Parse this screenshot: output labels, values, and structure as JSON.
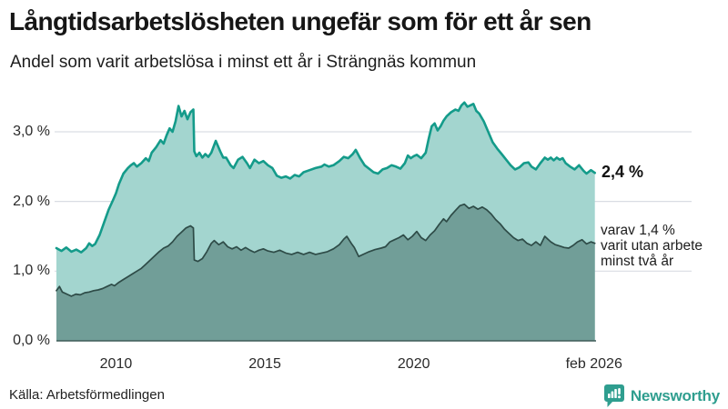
{
  "header": {
    "title": "Långtidsarbetslösheten ungefär som för ett år sen",
    "subtitle": "Andel som varit arbetslösa i minst ett år i Strängnäs kommun"
  },
  "chart_data": {
    "type": "area",
    "title": "Andel som varit arbetslösa i minst ett år i Strängnäs kommun",
    "grid": true,
    "x_axis": {
      "range": [
        2008.0,
        2026.12
      ],
      "ticks": [
        {
          "label": "2010",
          "year": 2010
        },
        {
          "label": "2015",
          "year": 2015
        },
        {
          "label": "2020",
          "year": 2020
        },
        {
          "label": "feb 2026",
          "year": 2026.05
        }
      ]
    },
    "y_axis": {
      "unit": "%",
      "range": [
        0,
        3.5
      ],
      "ticks": [
        {
          "label": "0,0 %",
          "value": 0
        },
        {
          "label": "1,0 %",
          "value": 1
        },
        {
          "label": "2,0 %",
          "value": 2
        },
        {
          "label": "3,0 %",
          "value": 3
        }
      ]
    },
    "series": [
      {
        "name": "Arbetslösa minst ett år",
        "end_label": "2,4 %",
        "end_value": 2.4,
        "line_color": "#149b8a",
        "fill_color": "#a3d5cf",
        "points": [
          [
            2008.0,
            1.33
          ],
          [
            2008.17,
            1.29
          ],
          [
            2008.33,
            1.34
          ],
          [
            2008.5,
            1.28
          ],
          [
            2008.67,
            1.31
          ],
          [
            2008.83,
            1.27
          ],
          [
            2009.0,
            1.33
          ],
          [
            2009.1,
            1.4
          ],
          [
            2009.2,
            1.36
          ],
          [
            2009.3,
            1.39
          ],
          [
            2009.45,
            1.52
          ],
          [
            2009.6,
            1.7
          ],
          [
            2009.75,
            1.88
          ],
          [
            2009.9,
            2.02
          ],
          [
            2010.0,
            2.12
          ],
          [
            2010.1,
            2.25
          ],
          [
            2010.25,
            2.4
          ],
          [
            2010.4,
            2.48
          ],
          [
            2010.5,
            2.52
          ],
          [
            2010.6,
            2.55
          ],
          [
            2010.7,
            2.5
          ],
          [
            2010.85,
            2.55
          ],
          [
            2011.0,
            2.62
          ],
          [
            2011.1,
            2.58
          ],
          [
            2011.2,
            2.7
          ],
          [
            2011.35,
            2.78
          ],
          [
            2011.5,
            2.88
          ],
          [
            2011.6,
            2.83
          ],
          [
            2011.7,
            2.95
          ],
          [
            2011.8,
            3.05
          ],
          [
            2011.9,
            3.0
          ],
          [
            2012.0,
            3.15
          ],
          [
            2012.1,
            3.37
          ],
          [
            2012.2,
            3.22
          ],
          [
            2012.3,
            3.3
          ],
          [
            2012.4,
            3.18
          ],
          [
            2012.5,
            3.28
          ],
          [
            2012.6,
            3.32
          ],
          [
            2012.63,
            2.72
          ],
          [
            2012.7,
            2.65
          ],
          [
            2012.8,
            2.7
          ],
          [
            2012.9,
            2.63
          ],
          [
            2013.0,
            2.68
          ],
          [
            2013.1,
            2.64
          ],
          [
            2013.2,
            2.7
          ],
          [
            2013.35,
            2.87
          ],
          [
            2013.5,
            2.72
          ],
          [
            2013.6,
            2.63
          ],
          [
            2013.7,
            2.63
          ],
          [
            2013.85,
            2.52
          ],
          [
            2013.95,
            2.48
          ],
          [
            2014.1,
            2.6
          ],
          [
            2014.25,
            2.64
          ],
          [
            2014.4,
            2.55
          ],
          [
            2014.5,
            2.48
          ],
          [
            2014.65,
            2.6
          ],
          [
            2014.8,
            2.55
          ],
          [
            2014.95,
            2.58
          ],
          [
            2015.1,
            2.52
          ],
          [
            2015.25,
            2.48
          ],
          [
            2015.4,
            2.37
          ],
          [
            2015.55,
            2.34
          ],
          [
            2015.7,
            2.36
          ],
          [
            2015.85,
            2.33
          ],
          [
            2016.0,
            2.38
          ],
          [
            2016.15,
            2.36
          ],
          [
            2016.3,
            2.42
          ],
          [
            2016.5,
            2.45
          ],
          [
            2016.7,
            2.48
          ],
          [
            2016.9,
            2.5
          ],
          [
            2017.0,
            2.53
          ],
          [
            2017.15,
            2.5
          ],
          [
            2017.3,
            2.52
          ],
          [
            2017.5,
            2.58
          ],
          [
            2017.65,
            2.64
          ],
          [
            2017.8,
            2.62
          ],
          [
            2017.95,
            2.68
          ],
          [
            2018.05,
            2.74
          ],
          [
            2018.2,
            2.62
          ],
          [
            2018.35,
            2.52
          ],
          [
            2018.5,
            2.47
          ],
          [
            2018.65,
            2.42
          ],
          [
            2018.8,
            2.4
          ],
          [
            2018.95,
            2.46
          ],
          [
            2019.1,
            2.48
          ],
          [
            2019.25,
            2.52
          ],
          [
            2019.4,
            2.5
          ],
          [
            2019.55,
            2.47
          ],
          [
            2019.7,
            2.55
          ],
          [
            2019.8,
            2.66
          ],
          [
            2019.9,
            2.62
          ],
          [
            2020.0,
            2.65
          ],
          [
            2020.1,
            2.67
          ],
          [
            2020.25,
            2.62
          ],
          [
            2020.4,
            2.7
          ],
          [
            2020.5,
            2.9
          ],
          [
            2020.6,
            3.08
          ],
          [
            2020.7,
            3.12
          ],
          [
            2020.8,
            3.02
          ],
          [
            2020.9,
            3.08
          ],
          [
            2021.0,
            3.16
          ],
          [
            2021.1,
            3.22
          ],
          [
            2021.25,
            3.28
          ],
          [
            2021.4,
            3.32
          ],
          [
            2021.5,
            3.3
          ],
          [
            2021.6,
            3.38
          ],
          [
            2021.7,
            3.42
          ],
          [
            2021.8,
            3.36
          ],
          [
            2021.9,
            3.38
          ],
          [
            2022.0,
            3.4
          ],
          [
            2022.1,
            3.3
          ],
          [
            2022.2,
            3.26
          ],
          [
            2022.35,
            3.15
          ],
          [
            2022.5,
            3.0
          ],
          [
            2022.65,
            2.85
          ],
          [
            2022.8,
            2.76
          ],
          [
            2022.95,
            2.68
          ],
          [
            2023.1,
            2.6
          ],
          [
            2023.25,
            2.52
          ],
          [
            2023.4,
            2.46
          ],
          [
            2023.55,
            2.49
          ],
          [
            2023.7,
            2.55
          ],
          [
            2023.85,
            2.56
          ],
          [
            2023.95,
            2.5
          ],
          [
            2024.1,
            2.46
          ],
          [
            2024.25,
            2.55
          ],
          [
            2024.4,
            2.63
          ],
          [
            2024.5,
            2.6
          ],
          [
            2024.6,
            2.63
          ],
          [
            2024.7,
            2.59
          ],
          [
            2024.8,
            2.63
          ],
          [
            2024.9,
            2.6
          ],
          [
            2025.0,
            2.62
          ],
          [
            2025.1,
            2.55
          ],
          [
            2025.25,
            2.5
          ],
          [
            2025.4,
            2.46
          ],
          [
            2025.55,
            2.52
          ],
          [
            2025.7,
            2.44
          ],
          [
            2025.8,
            2.4
          ],
          [
            2025.95,
            2.45
          ],
          [
            2026.08,
            2.41
          ]
        ]
      },
      {
        "name": "Varav utan arbete minst två år",
        "end_value": 1.4,
        "annotation_lines": [
          "varav 1,4 %",
          "varit utan arbete",
          "minst två år"
        ],
        "line_color": "#2e4b47",
        "fill_color": "#719e98",
        "points": [
          [
            2008.0,
            0.72
          ],
          [
            2008.1,
            0.78
          ],
          [
            2008.2,
            0.7
          ],
          [
            2008.35,
            0.67
          ],
          [
            2008.5,
            0.64
          ],
          [
            2008.65,
            0.67
          ],
          [
            2008.8,
            0.66
          ],
          [
            2008.95,
            0.69
          ],
          [
            2009.1,
            0.7
          ],
          [
            2009.25,
            0.72
          ],
          [
            2009.4,
            0.73
          ],
          [
            2009.55,
            0.75
          ],
          [
            2009.7,
            0.78
          ],
          [
            2009.85,
            0.81
          ],
          [
            2009.95,
            0.79
          ],
          [
            2010.1,
            0.84
          ],
          [
            2010.25,
            0.88
          ],
          [
            2010.4,
            0.92
          ],
          [
            2010.55,
            0.96
          ],
          [
            2010.7,
            1.0
          ],
          [
            2010.85,
            1.04
          ],
          [
            2011.0,
            1.1
          ],
          [
            2011.15,
            1.16
          ],
          [
            2011.3,
            1.22
          ],
          [
            2011.45,
            1.28
          ],
          [
            2011.6,
            1.33
          ],
          [
            2011.75,
            1.36
          ],
          [
            2011.9,
            1.42
          ],
          [
            2012.05,
            1.5
          ],
          [
            2012.2,
            1.56
          ],
          [
            2012.35,
            1.62
          ],
          [
            2012.5,
            1.65
          ],
          [
            2012.6,
            1.62
          ],
          [
            2012.63,
            1.16
          ],
          [
            2012.75,
            1.14
          ],
          [
            2012.9,
            1.18
          ],
          [
            2013.05,
            1.28
          ],
          [
            2013.2,
            1.4
          ],
          [
            2013.3,
            1.44
          ],
          [
            2013.45,
            1.38
          ],
          [
            2013.6,
            1.42
          ],
          [
            2013.75,
            1.35
          ],
          [
            2013.9,
            1.32
          ],
          [
            2014.05,
            1.35
          ],
          [
            2014.2,
            1.3
          ],
          [
            2014.35,
            1.34
          ],
          [
            2014.5,
            1.3
          ],
          [
            2014.65,
            1.27
          ],
          [
            2014.8,
            1.3
          ],
          [
            2014.95,
            1.32
          ],
          [
            2015.1,
            1.29
          ],
          [
            2015.3,
            1.27
          ],
          [
            2015.5,
            1.3
          ],
          [
            2015.7,
            1.26
          ],
          [
            2015.9,
            1.24
          ],
          [
            2016.1,
            1.27
          ],
          [
            2016.3,
            1.24
          ],
          [
            2016.5,
            1.27
          ],
          [
            2016.7,
            1.24
          ],
          [
            2016.9,
            1.26
          ],
          [
            2017.1,
            1.28
          ],
          [
            2017.3,
            1.32
          ],
          [
            2017.5,
            1.38
          ],
          [
            2017.65,
            1.46
          ],
          [
            2017.75,
            1.5
          ],
          [
            2017.9,
            1.4
          ],
          [
            2018.0,
            1.34
          ],
          [
            2018.15,
            1.21
          ],
          [
            2018.3,
            1.24
          ],
          [
            2018.5,
            1.28
          ],
          [
            2018.7,
            1.31
          ],
          [
            2018.9,
            1.33
          ],
          [
            2019.05,
            1.35
          ],
          [
            2019.2,
            1.42
          ],
          [
            2019.35,
            1.45
          ],
          [
            2019.5,
            1.48
          ],
          [
            2019.65,
            1.52
          ],
          [
            2019.8,
            1.45
          ],
          [
            2019.95,
            1.5
          ],
          [
            2020.1,
            1.57
          ],
          [
            2020.25,
            1.48
          ],
          [
            2020.4,
            1.44
          ],
          [
            2020.55,
            1.52
          ],
          [
            2020.7,
            1.58
          ],
          [
            2020.85,
            1.67
          ],
          [
            2021.0,
            1.75
          ],
          [
            2021.1,
            1.71
          ],
          [
            2021.25,
            1.8
          ],
          [
            2021.4,
            1.87
          ],
          [
            2021.55,
            1.94
          ],
          [
            2021.7,
            1.96
          ],
          [
            2021.85,
            1.9
          ],
          [
            2022.0,
            1.93
          ],
          [
            2022.15,
            1.89
          ],
          [
            2022.3,
            1.92
          ],
          [
            2022.45,
            1.88
          ],
          [
            2022.6,
            1.82
          ],
          [
            2022.75,
            1.74
          ],
          [
            2022.9,
            1.68
          ],
          [
            2023.05,
            1.6
          ],
          [
            2023.2,
            1.54
          ],
          [
            2023.35,
            1.48
          ],
          [
            2023.5,
            1.44
          ],
          [
            2023.65,
            1.46
          ],
          [
            2023.8,
            1.4
          ],
          [
            2023.95,
            1.37
          ],
          [
            2024.1,
            1.42
          ],
          [
            2024.25,
            1.37
          ],
          [
            2024.4,
            1.5
          ],
          [
            2024.5,
            1.46
          ],
          [
            2024.6,
            1.42
          ],
          [
            2024.75,
            1.38
          ],
          [
            2024.9,
            1.36
          ],
          [
            2025.05,
            1.34
          ],
          [
            2025.2,
            1.33
          ],
          [
            2025.35,
            1.37
          ],
          [
            2025.5,
            1.42
          ],
          [
            2025.65,
            1.45
          ],
          [
            2025.8,
            1.39
          ],
          [
            2025.95,
            1.42
          ],
          [
            2026.08,
            1.4
          ]
        ]
      }
    ],
    "grid_color": "#d9dde3",
    "baseline_color": "#3f5c58"
  },
  "footer": {
    "source": "Källa: Arbetsförmedlingen",
    "brand": "Newsworthy",
    "brand_color": "#2f9e8f"
  }
}
